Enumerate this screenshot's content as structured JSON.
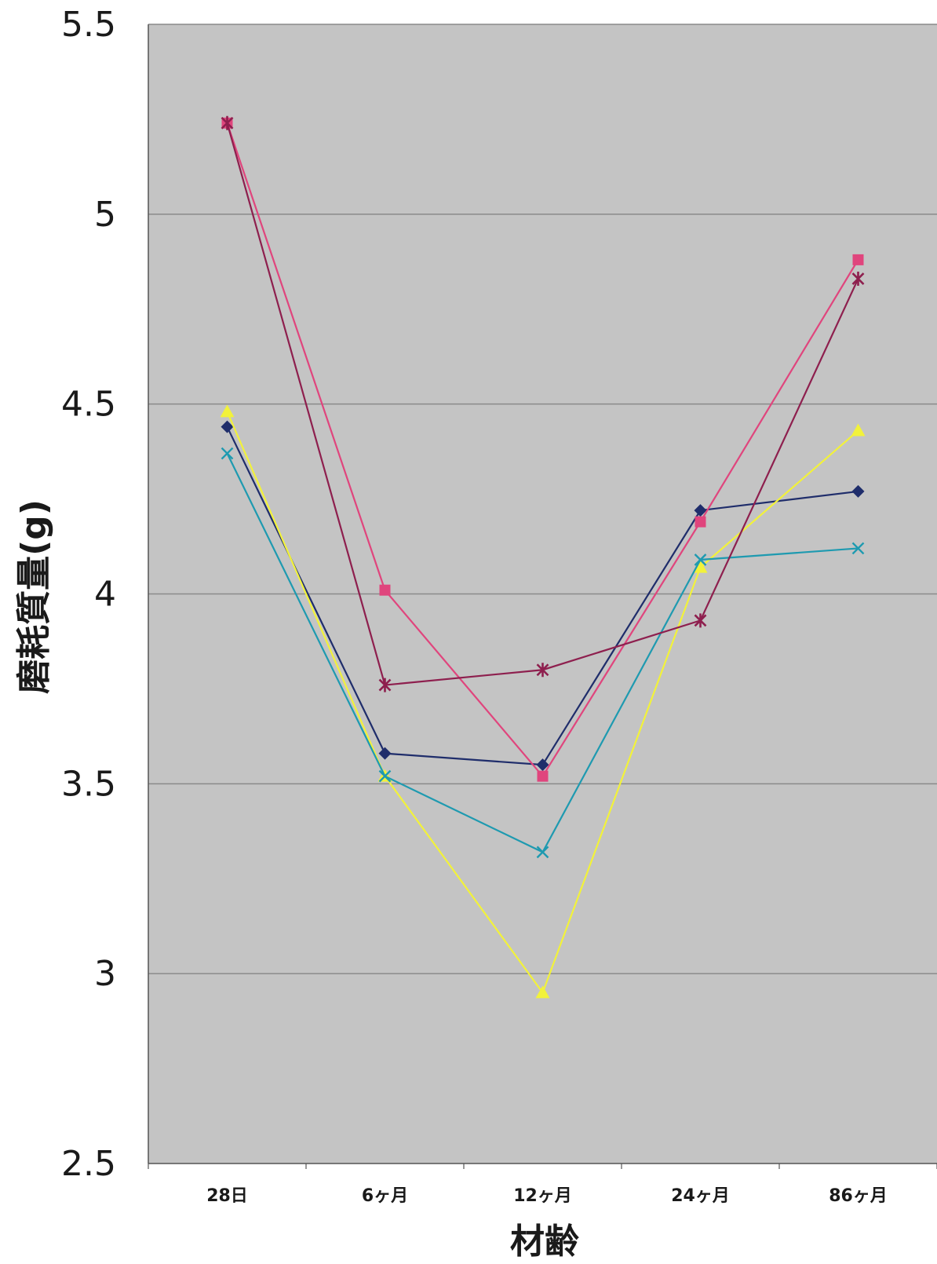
{
  "chart_data": {
    "type": "line",
    "title": "",
    "xlabel": "材齢",
    "ylabel": "磨耗質量(g)",
    "categories": [
      "28日",
      "6ヶ月",
      "12ヶ月",
      "24ヶ月",
      "86ヶ月"
    ],
    "ylim": [
      2.5,
      5.5
    ],
    "yticks": [
      2.5,
      3,
      3.5,
      4,
      4.5,
      5,
      5.5
    ],
    "grid": true,
    "series": [
      {
        "color": "#1f2d6b",
        "marker": "diamond",
        "values": [
          4.44,
          3.58,
          3.55,
          4.22,
          4.27
        ]
      },
      {
        "color": "#e0457d",
        "marker": "square",
        "values": [
          5.24,
          4.01,
          3.52,
          4.19,
          4.88
        ]
      },
      {
        "color": "#f2f23a",
        "marker": "triangle",
        "values": [
          4.48,
          3.52,
          2.95,
          4.07,
          4.43
        ]
      },
      {
        "color": "#1e9ab0",
        "marker": "x",
        "values": [
          4.37,
          3.52,
          3.32,
          4.09,
          4.12
        ]
      },
      {
        "color": "#8e1f4e",
        "marker": "star",
        "values": [
          5.24,
          3.76,
          3.8,
          3.93,
          4.83
        ]
      }
    ]
  }
}
